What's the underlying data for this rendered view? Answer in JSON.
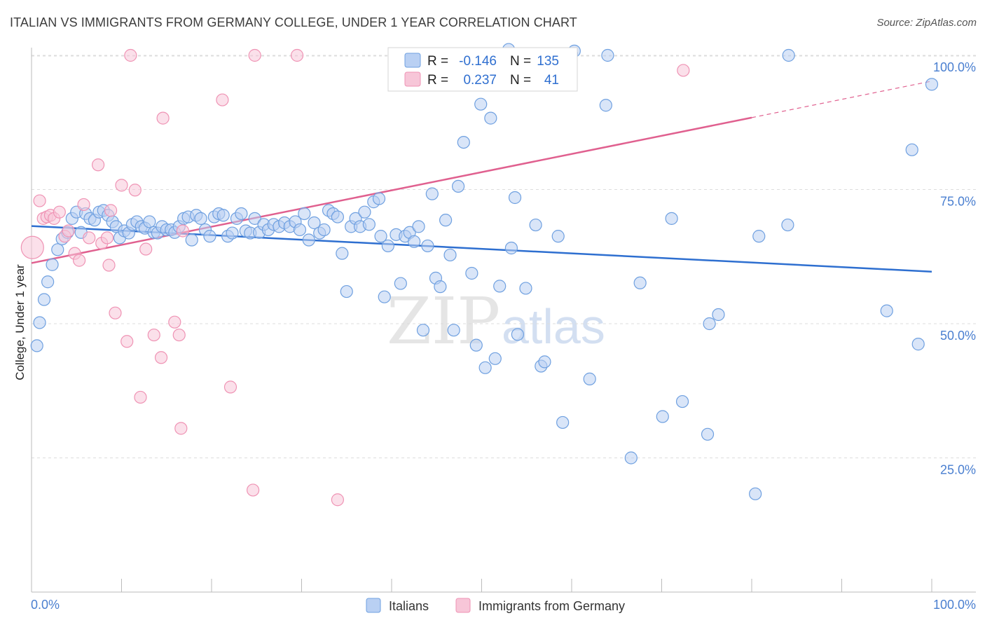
{
  "header": {
    "title": "ITALIAN VS IMMIGRANTS FROM GERMANY COLLEGE, UNDER 1 YEAR CORRELATION CHART",
    "source": "Source: ZipAtlas.com"
  },
  "watermark": {
    "part1": "ZIP",
    "part2": "atlas"
  },
  "colors": {
    "italians": "#6fa0e0",
    "italians_fill": "#b9d0f3",
    "italians_line": "#2e6fd0",
    "germany": "#ef93b4",
    "germany_fill": "#f7c6d8",
    "germany_line": "#e0608f",
    "tick_label": "#4a7fd0",
    "grid": "#dcdcdc"
  },
  "stats_box": {
    "row1": {
      "r_label": "R =",
      "r_value": "-0.146",
      "n_label": "N =",
      "n_value": "135"
    },
    "row2": {
      "r_label": "R =",
      "r_value": "0.237",
      "n_label": "N =",
      "n_value": "41"
    }
  },
  "legend": {
    "italians": "Italians",
    "germany": "Immigrants from Germany"
  },
  "chart_data": {
    "type": "scatter",
    "title": "ITALIAN VS IMMIGRANTS FROM GERMANY COLLEGE, UNDER 1 YEAR CORRELATION CHART",
    "xlabel": "",
    "ylabel": "College, Under 1 year",
    "xlim": [
      0,
      100
    ],
    "ylim": [
      0,
      104
    ],
    "x_tick_labels": [
      "0.0%",
      "100.0%"
    ],
    "y_ticks": [
      25,
      50,
      75,
      100
    ],
    "y_tick_labels": [
      "25.0%",
      "50.0%",
      "75.0%",
      "100.0%"
    ],
    "grid": true,
    "series": [
      {
        "name": "Italians",
        "r": -0.146,
        "n": 135,
        "trend": {
          "x": [
            0,
            100
          ],
          "y": [
            68.2,
            59.7
          ]
        },
        "points": [
          [
            0.6,
            45.9
          ],
          [
            0.9,
            50.2
          ],
          [
            1.4,
            54.5
          ],
          [
            1.8,
            57.8
          ],
          [
            2.3,
            61.0
          ],
          [
            2.9,
            63.8
          ],
          [
            3.4,
            65.8
          ],
          [
            4.0,
            67.0
          ],
          [
            4.5,
            69.6
          ],
          [
            5.0,
            70.8
          ],
          [
            5.5,
            67.0
          ],
          [
            6.0,
            70.5
          ],
          [
            6.5,
            69.6
          ],
          [
            7.0,
            69.3
          ],
          [
            7.5,
            70.8
          ],
          [
            8.0,
            71.1
          ],
          [
            8.5,
            70.2
          ],
          [
            9.0,
            69.0
          ],
          [
            9.4,
            68.1
          ],
          [
            9.8,
            66.0
          ],
          [
            10.3,
            67.3
          ],
          [
            10.8,
            66.9
          ],
          [
            11.2,
            68.5
          ],
          [
            11.7,
            69.0
          ],
          [
            12.2,
            68.1
          ],
          [
            12.6,
            67.8
          ],
          [
            13.1,
            69.0
          ],
          [
            13.6,
            67.0
          ],
          [
            14.0,
            66.9
          ],
          [
            14.5,
            68.1
          ],
          [
            15.0,
            67.5
          ],
          [
            15.5,
            67.5
          ],
          [
            15.9,
            67.0
          ],
          [
            16.4,
            68.1
          ],
          [
            16.9,
            69.6
          ],
          [
            17.4,
            69.9
          ],
          [
            17.8,
            65.6
          ],
          [
            18.3,
            70.2
          ],
          [
            18.8,
            69.6
          ],
          [
            19.3,
            67.5
          ],
          [
            19.8,
            66.3
          ],
          [
            20.3,
            69.9
          ],
          [
            20.8,
            70.5
          ],
          [
            21.3,
            70.2
          ],
          [
            21.8,
            66.3
          ],
          [
            22.3,
            66.9
          ],
          [
            22.8,
            69.6
          ],
          [
            23.3,
            70.5
          ],
          [
            23.8,
            67.3
          ],
          [
            24.3,
            66.9
          ],
          [
            24.8,
            69.6
          ],
          [
            25.3,
            67.0
          ],
          [
            25.8,
            68.5
          ],
          [
            26.3,
            67.5
          ],
          [
            26.9,
            68.5
          ],
          [
            27.5,
            68.1
          ],
          [
            28.1,
            68.8
          ],
          [
            28.7,
            68.1
          ],
          [
            29.3,
            69.0
          ],
          [
            29.8,
            67.5
          ],
          [
            30.3,
            70.5
          ],
          [
            30.8,
            65.6
          ],
          [
            31.4,
            68.8
          ],
          [
            32.0,
            66.9
          ],
          [
            32.5,
            67.5
          ],
          [
            33.0,
            71.1
          ],
          [
            33.5,
            70.5
          ],
          [
            34.0,
            69.9
          ],
          [
            34.5,
            63.1
          ],
          [
            35.0,
            56.0
          ],
          [
            35.5,
            68.1
          ],
          [
            36.0,
            69.6
          ],
          [
            36.5,
            68.1
          ],
          [
            37.0,
            70.8
          ],
          [
            37.5,
            68.5
          ],
          [
            38.0,
            72.7
          ],
          [
            38.6,
            73.3
          ],
          [
            38.8,
            66.3
          ],
          [
            39.2,
            55.0
          ],
          [
            39.6,
            64.5
          ],
          [
            40.5,
            66.6
          ],
          [
            41.0,
            57.5
          ],
          [
            41.5,
            66.3
          ],
          [
            42.0,
            67.0
          ],
          [
            42.5,
            65.3
          ],
          [
            43.0,
            68.1
          ],
          [
            43.5,
            48.8
          ],
          [
            44.0,
            64.5
          ],
          [
            44.5,
            74.2
          ],
          [
            44.9,
            58.5
          ],
          [
            45.4,
            56.9
          ],
          [
            46.0,
            69.3
          ],
          [
            46.5,
            62.8
          ],
          [
            46.9,
            48.8
          ],
          [
            47.4,
            75.6
          ],
          [
            48.0,
            83.8
          ],
          [
            48.9,
            59.4
          ],
          [
            49.4,
            46.0
          ],
          [
            49.9,
            90.9
          ],
          [
            50.4,
            41.8
          ],
          [
            51.0,
            88.3
          ],
          [
            51.5,
            43.5
          ],
          [
            52.0,
            57.0
          ],
          [
            53.0,
            101.1
          ],
          [
            53.3,
            64.1
          ],
          [
            53.7,
            73.5
          ],
          [
            54.0,
            48.0
          ],
          [
            54.9,
            56.6
          ],
          [
            55.8,
            100.3
          ],
          [
            56.0,
            68.4
          ],
          [
            56.6,
            42.1
          ],
          [
            57.0,
            42.9
          ],
          [
            58.5,
            66.3
          ],
          [
            59.0,
            31.6
          ],
          [
            60.0,
            100.3
          ],
          [
            60.3,
            100.8
          ],
          [
            62.0,
            39.7
          ],
          [
            63.8,
            90.7
          ],
          [
            64.0,
            100.0
          ],
          [
            66.6,
            25.0
          ],
          [
            67.6,
            57.6
          ],
          [
            70.1,
            32.7
          ],
          [
            71.1,
            69.6
          ],
          [
            72.3,
            35.5
          ],
          [
            75.1,
            29.4
          ],
          [
            75.3,
            50.0
          ],
          [
            76.3,
            51.7
          ],
          [
            80.4,
            18.3
          ],
          [
            80.8,
            66.3
          ],
          [
            84.0,
            68.4
          ],
          [
            84.1,
            100.0
          ],
          [
            95.0,
            52.4
          ],
          [
            97.8,
            82.4
          ],
          [
            98.5,
            46.2
          ],
          [
            100.0,
            94.6
          ]
        ]
      },
      {
        "name": "Immigrants from Germany",
        "r": 0.237,
        "n": 41,
        "trend": {
          "x": [
            0,
            80
          ],
          "y": [
            61.3,
            88.4
          ]
        },
        "trend_dashed_to": {
          "x": 100,
          "y": 95.2
        },
        "points": [
          [
            0.1,
            64.2
          ],
          [
            0.9,
            72.9
          ],
          [
            1.3,
            69.6
          ],
          [
            1.7,
            69.9
          ],
          [
            2.1,
            70.2
          ],
          [
            2.5,
            69.6
          ],
          [
            3.1,
            70.8
          ],
          [
            3.7,
            66.3
          ],
          [
            4.1,
            67.3
          ],
          [
            4.8,
            63.1
          ],
          [
            5.3,
            61.8
          ],
          [
            5.8,
            72.2
          ],
          [
            6.4,
            66.0
          ],
          [
            7.4,
            79.6
          ],
          [
            7.8,
            65.0
          ],
          [
            8.4,
            66.0
          ],
          [
            8.6,
            60.9
          ],
          [
            8.8,
            71.1
          ],
          [
            9.3,
            52.0
          ],
          [
            10.0,
            75.8
          ],
          [
            10.6,
            46.7
          ],
          [
            11.0,
            100.0
          ],
          [
            11.5,
            74.9
          ],
          [
            12.1,
            36.3
          ],
          [
            12.7,
            63.9
          ],
          [
            13.6,
            47.9
          ],
          [
            14.4,
            43.7
          ],
          [
            14.6,
            88.3
          ],
          [
            15.9,
            50.3
          ],
          [
            16.4,
            47.9
          ],
          [
            16.6,
            30.5
          ],
          [
            16.8,
            67.3
          ],
          [
            21.2,
            91.7
          ],
          [
            22.1,
            38.2
          ],
          [
            24.6,
            19.0
          ],
          [
            24.8,
            100.0
          ],
          [
            29.5,
            100.0
          ],
          [
            34.0,
            17.2
          ],
          [
            46.0,
            100.0
          ],
          [
            53.5,
            100.0
          ],
          [
            72.4,
            97.2
          ]
        ]
      }
    ]
  }
}
